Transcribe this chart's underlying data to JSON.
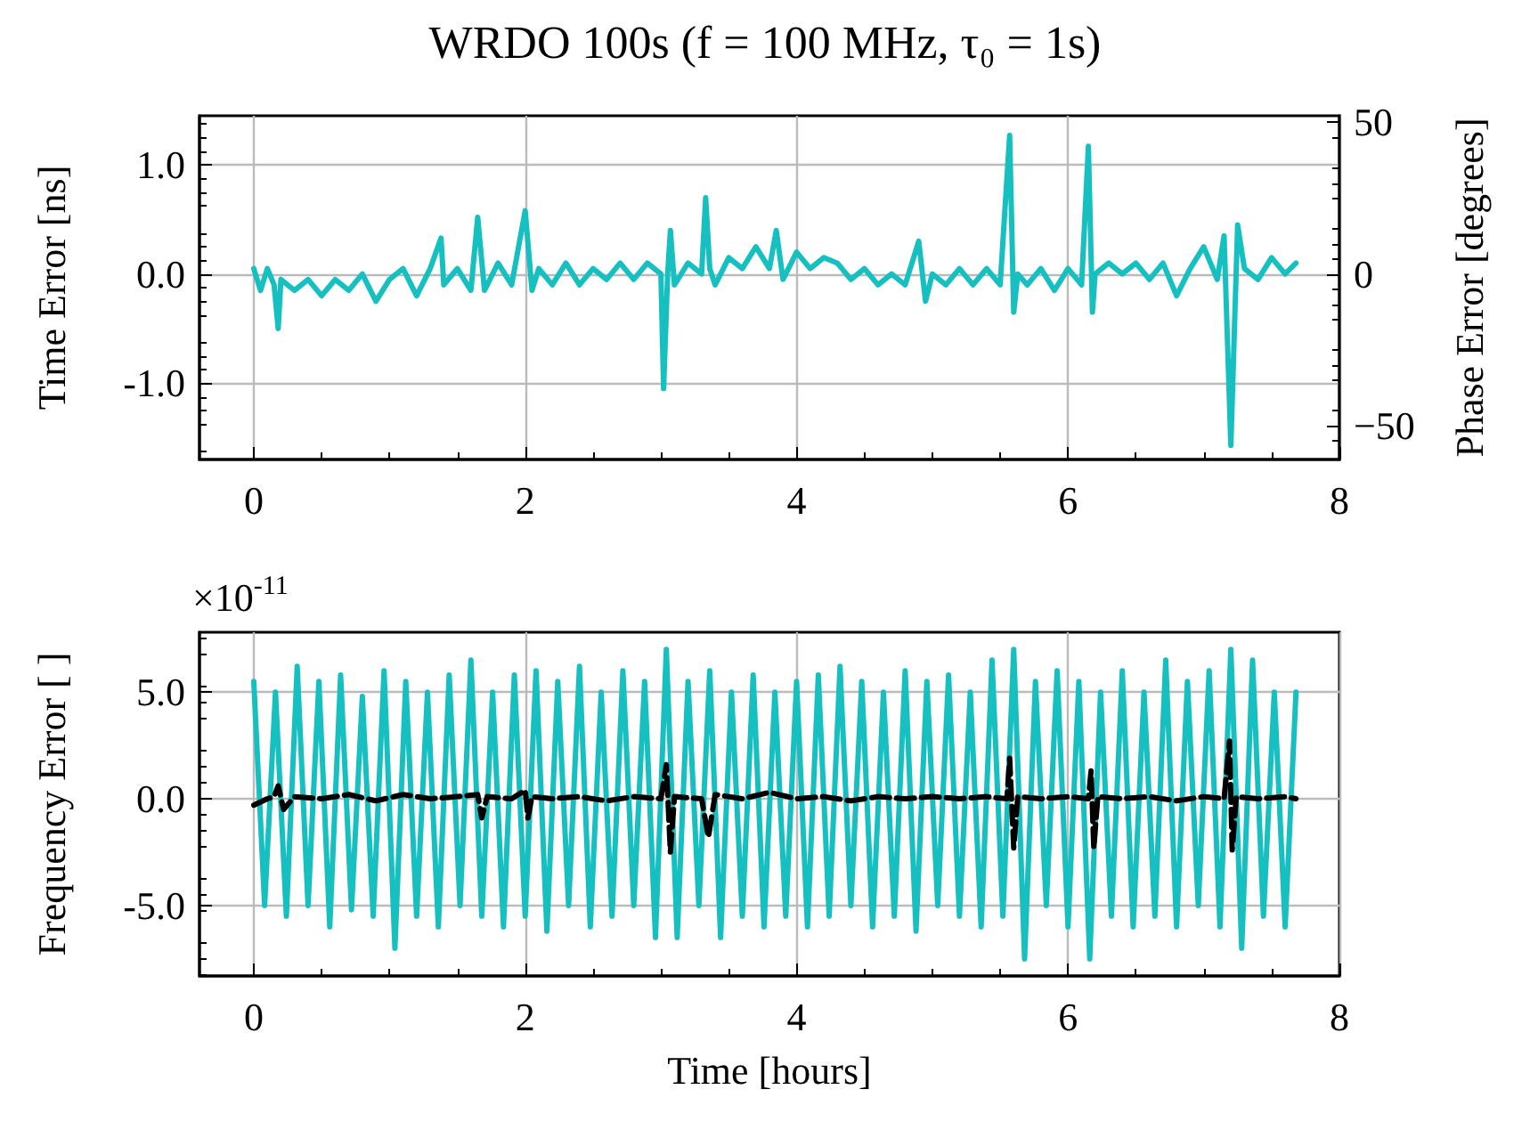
{
  "chart_data": [
    {
      "type": "line",
      "title": "WRDO 100s (f = 100 MHz, τ₀ = 1s)",
      "ylabel": "Time Error [ns]",
      "y2label": "Phase Error [degrees]",
      "xlim": [
        -0.4,
        8
      ],
      "xticks": [
        0,
        2,
        4,
        6,
        8
      ],
      "ylim": [
        -1.7,
        1.45
      ],
      "yticks": [
        {
          "value": -1,
          "label": "-1.0"
        },
        {
          "value": 0,
          "label": "0.0"
        },
        {
          "value": 1,
          "label": "1.0"
        }
      ],
      "y2lim": [
        -61.2,
        52.2
      ],
      "y2ticks": [
        {
          "value": -50,
          "label": "−50"
        },
        0,
        50
      ],
      "grid": true,
      "marker": "none",
      "line_style": "solid",
      "series": [
        {
          "color": "#17c0c0",
          "x": [
            0,
            0.05,
            0.1,
            0.15,
            0.18,
            0.2,
            0.3,
            0.4,
            0.5,
            0.6,
            0.7,
            0.8,
            0.9,
            1.0,
            1.1,
            1.2,
            1.3,
            1.38,
            1.4,
            1.5,
            1.6,
            1.65,
            1.7,
            1.8,
            1.9,
            2.0,
            2.05,
            2.1,
            2.2,
            2.3,
            2.4,
            2.5,
            2.6,
            2.7,
            2.8,
            2.9,
            3.0,
            3.02,
            3.05,
            3.07,
            3.1,
            3.2,
            3.3,
            3.33,
            3.36,
            3.4,
            3.5,
            3.6,
            3.7,
            3.8,
            3.85,
            3.9,
            4.0,
            4.1,
            4.2,
            4.3,
            4.4,
            4.5,
            4.6,
            4.7,
            4.8,
            4.9,
            4.95,
            5.0,
            5.1,
            5.2,
            5.3,
            5.4,
            5.5,
            5.57,
            5.6,
            5.63,
            5.7,
            5.8,
            5.9,
            6.0,
            6.1,
            6.15,
            6.18,
            6.2,
            6.3,
            6.4,
            6.5,
            6.6,
            6.7,
            6.8,
            6.9,
            7.0,
            7.1,
            7.15,
            7.2,
            7.25,
            7.3,
            7.4,
            7.5,
            7.6,
            7.68
          ],
          "values": [
            0.05,
            -0.15,
            0.05,
            -0.1,
            -0.5,
            -0.05,
            -0.15,
            -0.05,
            -0.2,
            -0.05,
            -0.15,
            0.0,
            -0.25,
            -0.05,
            0.05,
            -0.2,
            0.05,
            0.33,
            -0.1,
            0.05,
            -0.15,
            0.52,
            -0.15,
            0.1,
            -0.1,
            0.58,
            -0.15,
            0.05,
            -0.1,
            0.1,
            -0.1,
            0.05,
            -0.05,
            0.1,
            -0.05,
            0.1,
            0.0,
            -1.05,
            0.0,
            0.4,
            -0.1,
            0.1,
            0.0,
            0.7,
            0.05,
            -0.1,
            0.15,
            0.05,
            0.25,
            0.05,
            0.4,
            -0.05,
            0.2,
            0.05,
            0.15,
            0.1,
            -0.05,
            0.05,
            -0.1,
            0.0,
            -0.1,
            0.3,
            -0.25,
            0.0,
            -0.1,
            0.05,
            -0.1,
            0.05,
            -0.1,
            1.27,
            -0.35,
            0.0,
            -0.1,
            0.05,
            -0.15,
            0.05,
            -0.1,
            1.17,
            -0.35,
            0.0,
            0.1,
            0.0,
            0.1,
            -0.05,
            0.1,
            -0.2,
            0.05,
            0.25,
            -0.05,
            0.35,
            -1.57,
            0.45,
            0.05,
            -0.05,
            0.15,
            0.0,
            0.1
          ]
        }
      ]
    },
    {
      "type": "line",
      "xlabel": "Time [hours]",
      "ylabel": "Frequency Error [ ]",
      "annotations": [
        "×10$^{-11}$"
      ],
      "xlim": [
        -0.4,
        8
      ],
      "xticks": [
        0,
        2,
        4,
        6,
        8
      ],
      "ylim": [
        -8.3,
        7.8
      ],
      "yticks": [
        {
          "value": -5,
          "label": "-5.0"
        },
        {
          "value": 0,
          "label": "0.0"
        },
        {
          "value": 5,
          "label": "5.0"
        }
      ],
      "grid": true,
      "marker": "none",
      "line_style": "solid",
      "series": [
        {
          "color": "#17c0c0",
          "x": [
            0,
            0.08,
            0.16,
            0.24,
            0.32,
            0.4,
            0.48,
            0.56,
            0.64,
            0.72,
            0.8,
            0.88,
            0.96,
            1.04,
            1.12,
            1.2,
            1.28,
            1.36,
            1.44,
            1.52,
            1.6,
            1.68,
            1.76,
            1.84,
            1.92,
            2,
            2.08,
            2.16,
            2.24,
            2.32,
            2.4,
            2.48,
            2.56,
            2.64,
            2.72,
            2.8,
            2.88,
            2.96,
            3.04,
            3.12,
            3.2,
            3.28,
            3.36,
            3.44,
            3.52,
            3.6,
            3.68,
            3.76,
            3.84,
            3.92,
            4,
            4.08,
            4.16,
            4.24,
            4.32,
            4.4,
            4.48,
            4.56,
            4.64,
            4.72,
            4.8,
            4.88,
            4.96,
            5.04,
            5.12,
            5.2,
            5.28,
            5.36,
            5.44,
            5.52,
            5.6,
            5.68,
            5.76,
            5.84,
            5.92,
            6,
            6.08,
            6.16,
            6.24,
            6.32,
            6.4,
            6.48,
            6.56,
            6.64,
            6.72,
            6.8,
            6.88,
            6.96,
            7.04,
            7.12,
            7.2,
            7.28,
            7.36,
            7.44,
            7.52,
            7.6,
            7.68
          ],
          "values": [
            5.5,
            -5.0,
            5.0,
            -5.5,
            6.2,
            -5.0,
            5.5,
            -6.0,
            5.8,
            -5.2,
            4.8,
            -5.5,
            6.0,
            -7.0,
            5.5,
            -5.5,
            5.0,
            -6.0,
            5.8,
            -5.0,
            6.5,
            -5.5,
            5.0,
            -6.0,
            5.8,
            -5.5,
            6.0,
            -6.2,
            5.5,
            -5.0,
            6.2,
            -6.0,
            5.0,
            -5.5,
            6.0,
            -5.0,
            5.5,
            -6.5,
            7.0,
            -6.5,
            5.5,
            -5.0,
            6.0,
            -6.5,
            5.0,
            -5.5,
            5.8,
            -6.0,
            5.0,
            -5.5,
            5.5,
            -6.0,
            5.8,
            -5.5,
            6.2,
            -5.0,
            5.5,
            -6.0,
            5.0,
            -5.5,
            6.0,
            -6.2,
            5.5,
            -5.0,
            5.8,
            -5.5,
            5.0,
            -6.0,
            6.5,
            -5.5,
            7.0,
            -7.5,
            5.5,
            -5.0,
            6.0,
            -6.0,
            5.5,
            -7.5,
            5.0,
            -5.5,
            6.0,
            -6.0,
            5.0,
            -5.5,
            6.5,
            -6.0,
            5.5,
            -5.0,
            6.0,
            -6.0,
            7.0,
            -7.0,
            6.5,
            -5.5,
            5.0,
            -6.0,
            5.0
          ]
        },
        {
          "color": "#000000",
          "line_style": "dashed",
          "x": [
            0,
            0.1,
            0.15,
            0.18,
            0.22,
            0.3,
            0.5,
            0.7,
            0.9,
            1.1,
            1.3,
            1.5,
            1.65,
            1.68,
            1.72,
            1.9,
            2.0,
            2.02,
            2.05,
            2.2,
            2.4,
            2.6,
            2.8,
            3.0,
            3.04,
            3.07,
            3.1,
            3.3,
            3.35,
            3.4,
            3.6,
            3.8,
            4.0,
            4.2,
            4.4,
            4.6,
            4.8,
            5.0,
            5.2,
            5.4,
            5.55,
            5.57,
            5.6,
            5.63,
            5.8,
            6.0,
            6.15,
            6.17,
            6.19,
            6.22,
            6.4,
            6.6,
            6.8,
            7.0,
            7.15,
            7.19,
            7.21,
            7.24,
            7.4,
            7.6,
            7.68
          ],
          "values": [
            -0.3,
            0.0,
            0.1,
            0.6,
            -0.5,
            0.1,
            0.0,
            0.2,
            -0.1,
            0.2,
            0.0,
            0.1,
            0.2,
            -0.9,
            0.1,
            0.0,
            0.4,
            -0.9,
            0.1,
            0.0,
            0.1,
            -0.1,
            0.1,
            0.0,
            1.6,
            -2.5,
            0.1,
            0.0,
            -1.8,
            0.2,
            0.0,
            0.3,
            0.0,
            0.1,
            -0.1,
            0.1,
            0.0,
            0.1,
            0.0,
            0.1,
            0.0,
            1.9,
            -2.3,
            0.1,
            0.0,
            0.1,
            0.0,
            1.3,
            -2.3,
            0.1,
            0.0,
            0.1,
            -0.1,
            0.1,
            0.0,
            2.7,
            -2.4,
            0.1,
            0.0,
            0.1,
            0.0
          ]
        }
      ]
    }
  ]
}
